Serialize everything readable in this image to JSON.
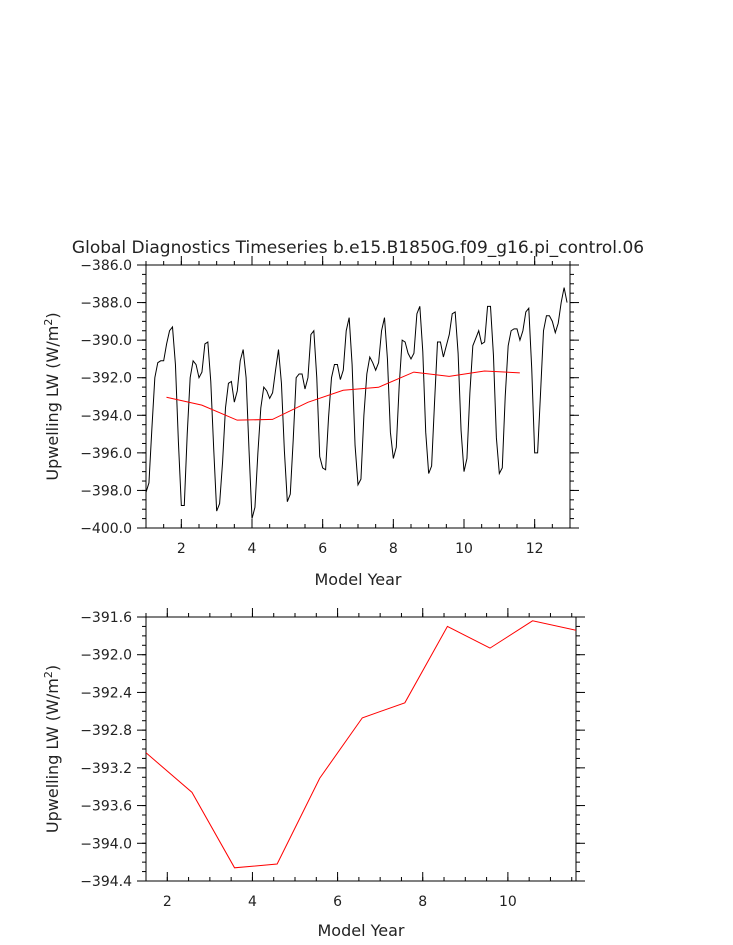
{
  "title": "Global Diagnostics Timeseries b.e15.B1850G.f09_g16.pi_control.06",
  "chart_data": [
    {
      "type": "line",
      "xlabel": "Model Year",
      "ylabel_main": "Upwelling LW (W/m",
      "ylabel_sup": "2",
      "ylabel_tail": ")",
      "xlim": [
        1.0,
        13.0
      ],
      "ylim": [
        -400.0,
        -386.0
      ],
      "x_ticks": [
        2,
        4,
        6,
        8,
        10,
        12
      ],
      "x_tick_labels": [
        "2",
        "4",
        "6",
        "8",
        "10",
        "12"
      ],
      "y_ticks": [
        -400,
        -398,
        -396,
        -394,
        -392,
        -390,
        -388,
        -386
      ],
      "y_tick_labels": [
        "−400.0",
        "−398.0",
        "−396.0",
        "−394.0",
        "−392.0",
        "−390.0",
        "−388.0",
        "−386.0"
      ],
      "series": [
        {
          "color": "#000000",
          "monthly_values": [
            -398.1,
            -397.6,
            -394.7,
            -392.0,
            -391.2,
            -391.1,
            -391.1,
            -390.2,
            -389.5,
            -389.3,
            -391.3,
            -395.4,
            -398.8,
            -398.8,
            -395.0,
            -392.0,
            -391.1,
            -391.3,
            -392.0,
            -391.7,
            -390.2,
            -390.1,
            -392.2,
            -395.8,
            -399.1,
            -398.7,
            -396.5,
            -393.6,
            -392.3,
            -392.2,
            -393.3,
            -392.7,
            -391.1,
            -390.5,
            -392.0,
            -395.9,
            -399.5,
            -398.9,
            -396.0,
            -393.6,
            -392.5,
            -392.7,
            -393.1,
            -392.8,
            -391.6,
            -390.5,
            -392.3,
            -395.9,
            -398.6,
            -398.2,
            -395.3,
            -392.0,
            -391.8,
            -391.8,
            -392.6,
            -392.0,
            -389.7,
            -389.5,
            -392.0,
            -396.2,
            -396.8,
            -396.9,
            -394.1,
            -392.0,
            -391.3,
            -391.3,
            -392.1,
            -391.6,
            -389.5,
            -388.8,
            -391.3,
            -395.6,
            -397.7,
            -397.4,
            -394.0,
            -391.8,
            -390.9,
            -391.2,
            -391.6,
            -391.2,
            -389.5,
            -388.8,
            -391.0,
            -394.9,
            -396.3,
            -395.7,
            -392.4,
            -390.0,
            -390.1,
            -390.7,
            -391.0,
            -390.7,
            -388.6,
            -388.2,
            -390.6,
            -394.9,
            -397.1,
            -396.7,
            -393.3,
            -390.1,
            -390.1,
            -390.9,
            -390.3,
            -389.7,
            -388.6,
            -388.5,
            -390.7,
            -394.8,
            -397.0,
            -396.3,
            -392.8,
            -390.3,
            -389.9,
            -389.5,
            -390.2,
            -390.1,
            -388.2,
            -388.2,
            -390.8,
            -395.2,
            -397.1,
            -396.8,
            -393.0,
            -390.3,
            -389.5,
            -389.4,
            -389.4,
            -390.0,
            -389.5,
            -388.5,
            -388.3,
            -391.5,
            -396.0,
            -396.0,
            -392.8,
            -389.5,
            -388.7,
            -388.7,
            -389.0,
            -389.6,
            -389.1,
            -388.0,
            -387.2,
            -388.0
          ],
          "x_start": 1.0,
          "x_step": 0.0833333
        },
        {
          "color": "#ff0000",
          "x": [
            1.58,
            2.58,
            3.58,
            4.58,
            5.58,
            6.58,
            7.58,
            8.58,
            9.58,
            10.58,
            11.58
          ],
          "values": [
            -393.04,
            -393.46,
            -394.26,
            -394.22,
            -393.31,
            -392.67,
            -392.51,
            -391.7,
            -391.93,
            -391.64,
            -391.74
          ]
        }
      ]
    },
    {
      "type": "line",
      "xlabel": "Model Year",
      "ylabel_main": "Upwelling LW (W/m",
      "ylabel_sup": "2",
      "ylabel_tail": ")",
      "xlim": [
        1.5,
        11.6
      ],
      "ylim": [
        -394.4,
        -391.6
      ],
      "x_ticks": [
        2,
        4,
        6,
        8,
        10
      ],
      "x_tick_labels": [
        "2",
        "4",
        "6",
        "8",
        "10"
      ],
      "y_ticks": [
        -394.4,
        -394.0,
        -393.6,
        -393.2,
        -392.8,
        -392.4,
        -392.0,
        -391.6
      ],
      "y_tick_labels": [
        "−394.4",
        "−394.0",
        "−393.6",
        "−393.2",
        "−392.8",
        "−392.4",
        "−392.0",
        "−391.6"
      ],
      "series": [
        {
          "color": "#ff0000",
          "x": [
            1.5,
            2.58,
            3.58,
            4.58,
            5.58,
            6.58,
            7.58,
            8.58,
            9.58,
            10.58,
            11.6
          ],
          "values": [
            -393.04,
            -393.46,
            -394.26,
            -394.22,
            -393.31,
            -392.67,
            -392.51,
            -391.7,
            -391.93,
            -391.64,
            -391.74
          ]
        }
      ]
    }
  ]
}
